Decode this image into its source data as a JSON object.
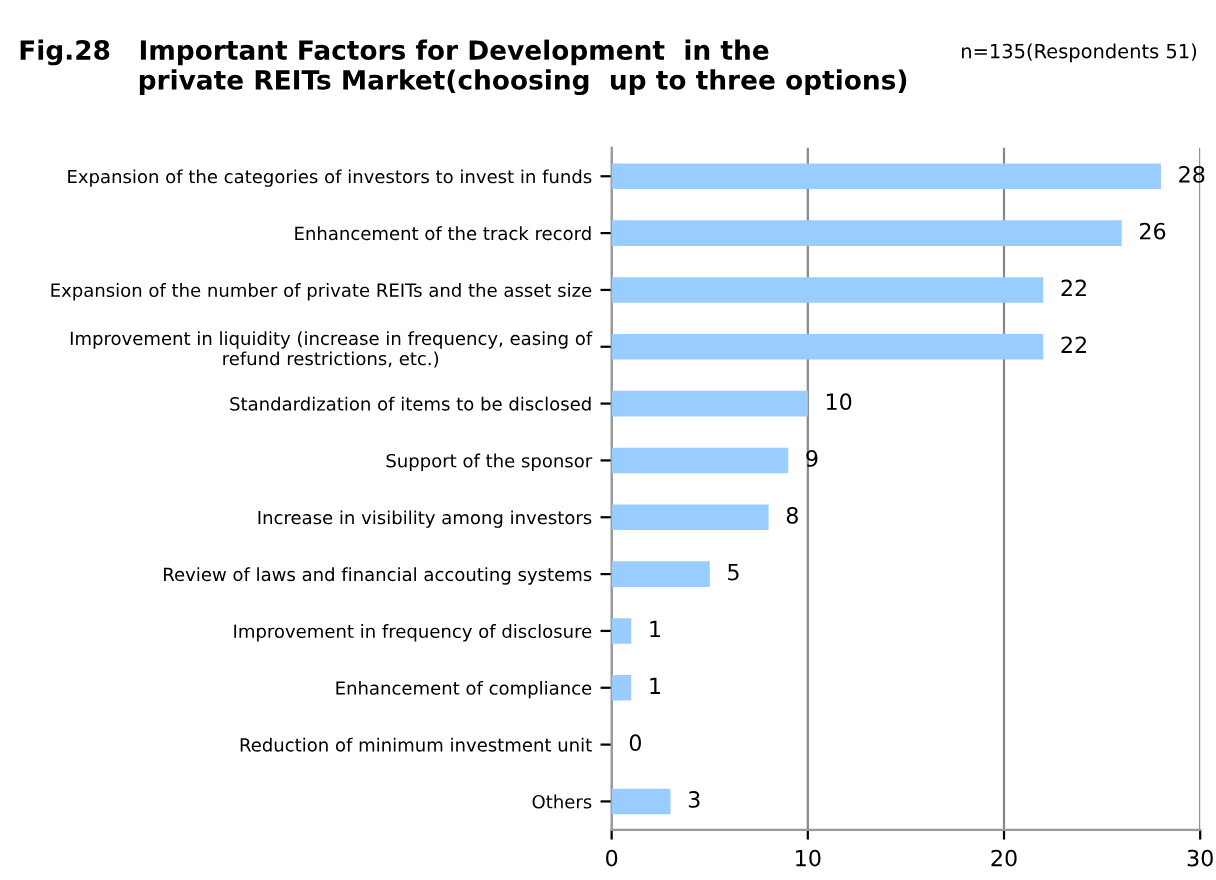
{
  "chart_data": {
    "type": "bar",
    "orientation": "horizontal",
    "title": "Fig.28   Important Factors for Development  in the\n             private REITs Market(choosing  up to three options)",
    "annotations": [
      "n=135(Respondents 51)"
    ],
    "categories": [
      "Expansion of the categories of investors to invest in funds",
      "Enhancement of the track record",
      "Expansion of the number of private REITs and the asset size",
      "Improvement in liquidity (increase in frequency, easing of\nrefund restrictions, etc.)",
      "Standardization of items to be disclosed",
      "Support of the sponsor",
      "Increase in visibility among investors",
      "Review of laws and financial accouting systems",
      "Improvement in frequency of disclosure",
      "Enhancement of compliance",
      "Reduction of minimum investment unit",
      "Others"
    ],
    "values": [
      28,
      26,
      22,
      22,
      10,
      9,
      8,
      5,
      1,
      1,
      0,
      3
    ],
    "color": "#99ccff",
    "xlim": [
      0,
      30
    ],
    "xticks": [
      0,
      10,
      20,
      30
    ],
    "grid": "x",
    "data_labels": true
  }
}
